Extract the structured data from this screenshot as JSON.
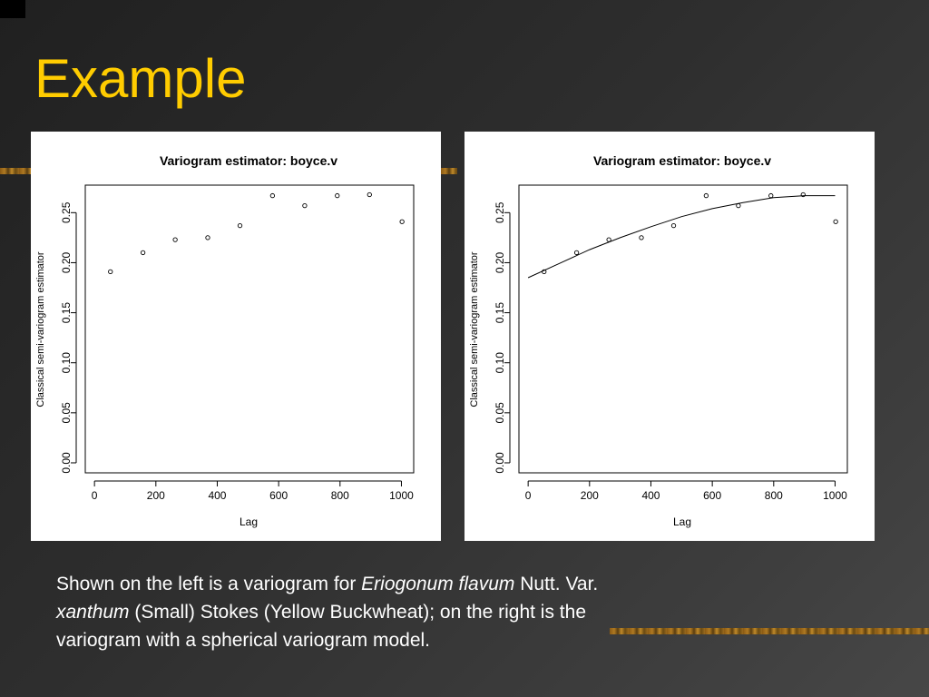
{
  "slide": {
    "title": "Example",
    "caption": {
      "part1": "Shown on the left is a variogram for ",
      "species_italic": "Eriogonum flavum",
      "part2": " Nutt. Var.",
      "variety_italic": "xanthum",
      "part3": " (Small) Stokes (Yellow Buckwheat); on the right is the",
      "part4": "variogram with a spherical variogram model."
    }
  },
  "colors": {
    "title": "#ffcc00",
    "caption_text": "#ffffff",
    "accent_stripe": "#a0701e"
  },
  "chart_data": [
    {
      "type": "scatter",
      "title": "Variogram estimator: boyce.v",
      "xlabel": "Lag",
      "ylabel": "Classical semi-variogram estimator",
      "xlim": [
        -30,
        1040
      ],
      "ylim": [
        -0.01,
        0.2775
      ],
      "xticks": [
        0,
        200,
        400,
        600,
        800,
        1000
      ],
      "yticks": [
        0.0,
        0.05,
        0.1,
        0.15,
        0.2,
        0.25
      ],
      "xtick_labels": [
        "0",
        "200",
        "400",
        "600",
        "800",
        "1000"
      ],
      "ytick_labels": [
        "0.00",
        "0.05",
        "0.10",
        "0.15",
        "0.20",
        "0.25"
      ],
      "grid": false,
      "points": {
        "x": [
          52,
          158,
          263,
          369,
          474,
          580,
          685,
          791,
          896,
          1002
        ],
        "y": [
          0.191,
          0.21,
          0.223,
          0.225,
          0.237,
          0.267,
          0.257,
          0.267,
          0.268,
          0.241
        ]
      }
    },
    {
      "type": "scatter",
      "title": "Variogram estimator: boyce.v",
      "xlabel": "Lag",
      "ylabel": "Classical semi-variogram estimator",
      "xlim": [
        -30,
        1040
      ],
      "ylim": [
        -0.01,
        0.2775
      ],
      "xticks": [
        0,
        200,
        400,
        600,
        800,
        1000
      ],
      "yticks": [
        0.0,
        0.05,
        0.1,
        0.15,
        0.2,
        0.25
      ],
      "xtick_labels": [
        "0",
        "200",
        "400",
        "600",
        "800",
        "1000"
      ],
      "ytick_labels": [
        "0.00",
        "0.05",
        "0.10",
        "0.15",
        "0.20",
        "0.25"
      ],
      "grid": false,
      "points": {
        "x": [
          52,
          158,
          263,
          369,
          474,
          580,
          685,
          791,
          896,
          1002
        ],
        "y": [
          0.191,
          0.21,
          0.223,
          0.225,
          0.237,
          0.267,
          0.257,
          0.267,
          0.268,
          0.241
        ]
      },
      "model_curve": {
        "model": "spherical",
        "x": [
          0,
          100,
          200,
          300,
          400,
          500,
          600,
          700,
          800,
          900,
          1000
        ],
        "y": [
          0.185,
          0.199,
          0.213,
          0.225,
          0.236,
          0.246,
          0.254,
          0.26,
          0.265,
          0.267,
          0.267
        ]
      }
    }
  ]
}
